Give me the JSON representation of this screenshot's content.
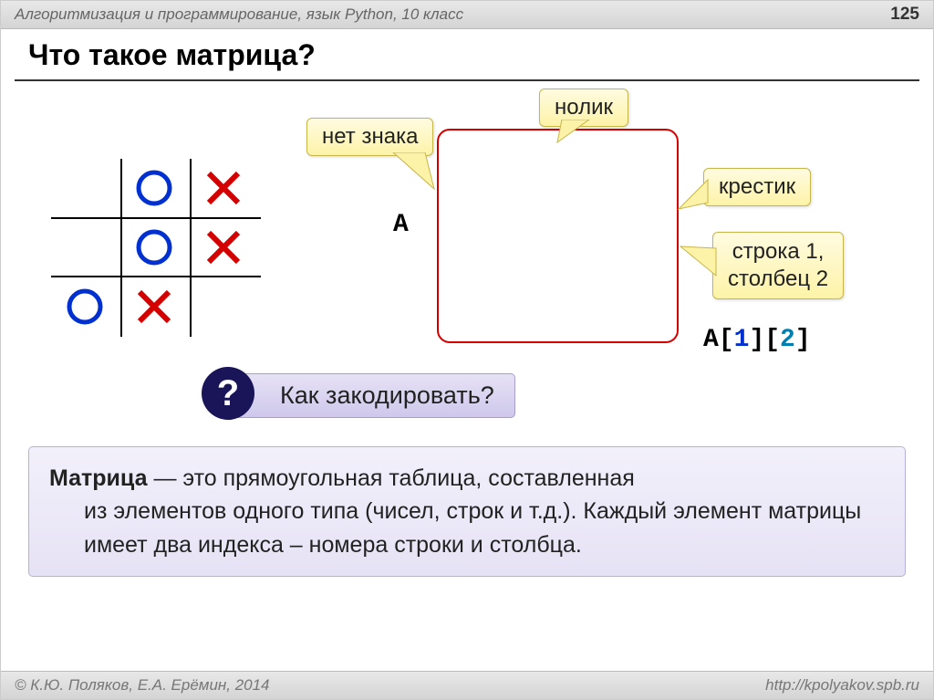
{
  "header": {
    "title": "Алгоритмизация и программирование, язык Python, 10 класс",
    "page_number": "125"
  },
  "title": "Что такое матрица?",
  "board": {
    "line_color": "#000000",
    "o_color": "#0030d0",
    "x_color": "#d40000",
    "cells": [
      [
        "",
        "O",
        "X"
      ],
      [
        "",
        "O",
        "X"
      ],
      [
        "O",
        "X",
        ""
      ]
    ]
  },
  "redbox": {
    "border_color": "#d40000"
  },
  "matrix_var": "A",
  "index_expr": {
    "var": "A",
    "i1": "1",
    "i2": "2"
  },
  "callouts": {
    "empty": "нет знака",
    "nolik": "нолик",
    "krestik": "крестик",
    "rowcol": "строка 1,\nстолбец 2"
  },
  "question": "Как закодировать?",
  "definition": {
    "term": "Матрица",
    "text_line1": " — это прямоугольная таблица, составленная",
    "text_rest": "из элементов одного типа (чисел, строк и т.д.). Каждый элемент матрицы имеет два индекса – номера строки и столбца."
  },
  "footer": {
    "copyright": "© К.Ю. Поляков, Е.А. Ерёмин, 2014",
    "url": "http://kpolyakov.spb.ru"
  },
  "colors": {
    "callout_bg": "#fdf3a8",
    "qbar_bg": "#cfc8ec",
    "def_bg": "#e6e2f5"
  }
}
